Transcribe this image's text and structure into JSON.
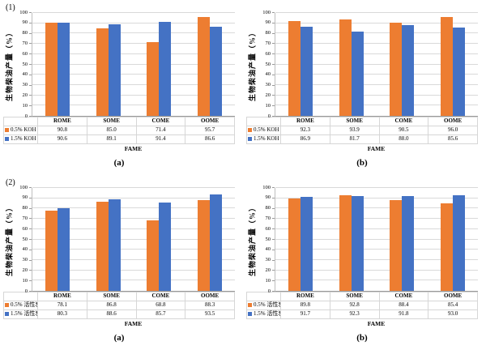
{
  "colors": {
    "series_a_orange": "#ED7D31",
    "series_b_blue": "#4472C4",
    "gridline": "#D9D9D9",
    "axis_line": "#9A9A9A",
    "table_border": "#D6D6D6"
  },
  "chart_data": [
    {
      "type": "bar",
      "panel_label": "(1)",
      "caption": "(a)",
      "xlabel": "FAME",
      "ylabel": "生物柴油产量（%）",
      "ylim": [
        0,
        100
      ],
      "ytick_step": 10,
      "grid": true,
      "legend_position": "table-left",
      "categories": [
        "ROME",
        "SOME",
        "COME",
        "OOME"
      ],
      "series": [
        {
          "name": "0.5% KOH",
          "color": "#ED7D31",
          "values": [
            90.8,
            85.0,
            71.4,
            95.7
          ]
        },
        {
          "name": "1.5% KOH",
          "color": "#4472C4",
          "values": [
            90.6,
            89.1,
            91.4,
            86.6
          ]
        }
      ]
    },
    {
      "type": "bar",
      "panel_label": "",
      "caption": "(b)",
      "xlabel": "FAME",
      "ylabel": "生物柴油产量（%）",
      "ylim": [
        0,
        100
      ],
      "ytick_step": 10,
      "grid": true,
      "legend_position": "table-left",
      "categories": [
        "ROME",
        "SOME",
        "COME",
        "OOME"
      ],
      "series": [
        {
          "name": "0.5% KOH",
          "color": "#ED7D31",
          "values": [
            92.3,
            93.9,
            90.5,
            96.0
          ]
        },
        {
          "name": "1.5% KOH",
          "color": "#4472C4",
          "values": [
            86.9,
            81.7,
            88.0,
            85.6
          ]
        }
      ]
    },
    {
      "type": "bar",
      "panel_label": "(2)",
      "caption": "(a)",
      "xlabel": "FAME",
      "ylabel": "生物柴油产量（%）",
      "ylim": [
        0,
        100
      ],
      "ytick_step": 10,
      "grid": true,
      "legend_position": "table-left",
      "categories": [
        "ROME",
        "SOME",
        "COME",
        "OOME"
      ],
      "series": [
        {
          "name": "0.5% 活性炭",
          "color": "#ED7D31",
          "values": [
            78.1,
            86.8,
            68.8,
            88.3
          ]
        },
        {
          "name": "1.5% 活性炭",
          "color": "#4472C4",
          "values": [
            80.3,
            88.6,
            85.7,
            93.5
          ]
        }
      ]
    },
    {
      "type": "bar",
      "panel_label": "",
      "caption": "(b)",
      "xlabel": "FAME",
      "ylabel": "生物柴油产量（%）",
      "ylim": [
        0,
        100
      ],
      "ytick_step": 10,
      "grid": true,
      "legend_position": "table-left",
      "categories": [
        "ROME",
        "SOME",
        "COME",
        "OOME"
      ],
      "series": [
        {
          "name": "0.5% 活性炭",
          "color": "#ED7D31",
          "values": [
            89.8,
            92.8,
            88.4,
            85.4
          ]
        },
        {
          "name": "1.5% 活性炭",
          "color": "#4472C4",
          "values": [
            91.7,
            92.3,
            91.8,
            93.0
          ]
        }
      ]
    }
  ]
}
